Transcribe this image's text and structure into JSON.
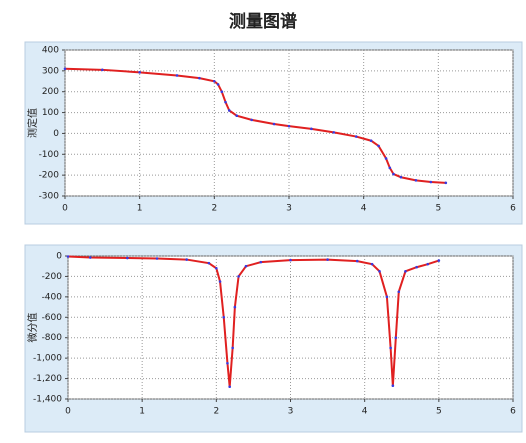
{
  "title": "测量图谱",
  "chart_data": [
    {
      "type": "line",
      "ylabel": "测定值",
      "grid": true,
      "line_color": "#e02020",
      "marker_color": "#3a3ae0",
      "xlim": [
        0,
        6
      ],
      "xticks": [
        0,
        1,
        2,
        3,
        4,
        5,
        6
      ],
      "ylim": [
        -300,
        400
      ],
      "yticks": [
        -300,
        -200,
        -100,
        0,
        100,
        200,
        300,
        400
      ],
      "x": [
        0,
        0.5,
        1,
        1.5,
        1.8,
        2.0,
        2.05,
        2.1,
        2.15,
        2.2,
        2.3,
        2.5,
        2.8,
        3.0,
        3.3,
        3.6,
        3.9,
        4.1,
        4.2,
        4.3,
        4.35,
        4.4,
        4.5,
        4.7,
        4.9,
        5.1
      ],
      "series": [
        {
          "values": [
            310,
            305,
            293,
            278,
            265,
            250,
            235,
            200,
            150,
            110,
            85,
            65,
            45,
            35,
            22,
            5,
            -15,
            -35,
            -60,
            -120,
            -165,
            -195,
            -210,
            -225,
            -233,
            -237
          ]
        }
      ]
    },
    {
      "type": "line",
      "ylabel": "微分值",
      "grid": true,
      "line_color": "#e02020",
      "marker_color": "#3a3ae0",
      "xlim": [
        0,
        6
      ],
      "xticks": [
        0,
        1,
        2,
        3,
        4,
        5,
        6
      ],
      "ylim": [
        -1400,
        0
      ],
      "yticks": [
        {
          "value": -1400,
          "label": "-1,400"
        },
        {
          "value": -1200,
          "label": "-1,200"
        },
        {
          "value": -1000,
          "label": "-1,000"
        },
        -800,
        -600,
        -400,
        -200,
        0
      ],
      "x": [
        0,
        0.3,
        0.8,
        1.2,
        1.6,
        1.9,
        2.0,
        2.05,
        2.1,
        2.15,
        2.18,
        2.22,
        2.25,
        2.3,
        2.4,
        2.6,
        3.0,
        3.5,
        3.9,
        4.1,
        4.2,
        4.3,
        4.35,
        4.38,
        4.42,
        4.46,
        4.55,
        4.7,
        4.85,
        5.0
      ],
      "series": [
        {
          "values": [
            -5,
            -15,
            -20,
            -25,
            -35,
            -70,
            -120,
            -250,
            -600,
            -1050,
            -1280,
            -900,
            -500,
            -200,
            -100,
            -60,
            -40,
            -35,
            -50,
            -80,
            -150,
            -400,
            -900,
            -1270,
            -800,
            -350,
            -150,
            -110,
            -80,
            -45
          ]
        }
      ]
    }
  ]
}
